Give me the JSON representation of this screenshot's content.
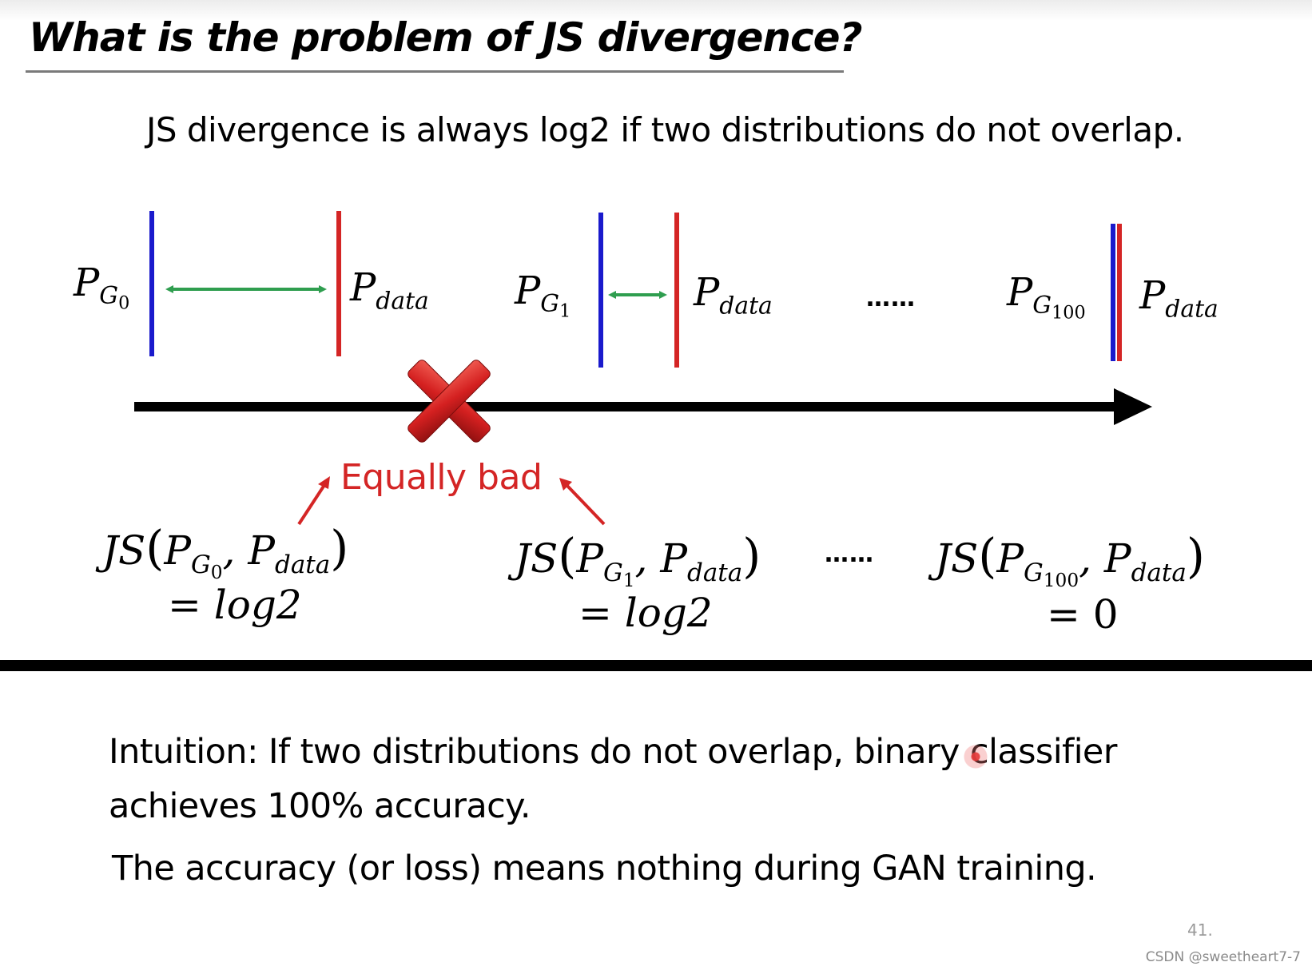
{
  "slide": {
    "title": "What is the problem of JS divergence?",
    "subtitle": "JS divergence is always log2 if two distributions do not overlap.",
    "page_number": "41.",
    "watermark": "CSDN @sweetheart7-7"
  },
  "distributions": [
    {
      "generator_label": "P",
      "generator_sub": "G",
      "generator_subsub": "0",
      "data_label": "P",
      "data_sub": "data"
    },
    {
      "generator_label": "P",
      "generator_sub": "G",
      "generator_subsub": "1",
      "data_label": "P",
      "data_sub": "data"
    },
    {
      "generator_label": "P",
      "generator_sub": "G",
      "generator_subsub": "100",
      "data_label": "P",
      "data_sub": "data"
    }
  ],
  "ellipsis": "……",
  "annotation": {
    "text": "Equally bad",
    "color": "#d42525",
    "cross_icon": "red-x-icon"
  },
  "equations": [
    {
      "func": "JS",
      "g_sub": "G",
      "g_subsub": "0",
      "data_sub": "data",
      "result": "= log2"
    },
    {
      "func": "JS",
      "g_sub": "G",
      "g_subsub": "1",
      "data_sub": "data",
      "result": "= log2"
    },
    {
      "func": "JS",
      "g_sub": "G",
      "g_subsub": "100",
      "data_sub": "data",
      "result": "= 0"
    }
  ],
  "colors": {
    "generator_line": "#1a1acc",
    "data_line": "#d42525",
    "distance_arrow": "#2f9e4f",
    "axis": "#000000"
  },
  "body": {
    "intuition_line1": "Intuition: If two distributions do not overlap, binary classifier",
    "intuition_line2": "achieves 100% accuracy.",
    "conclusion": "The accuracy (or loss) means nothing during GAN training."
  }
}
